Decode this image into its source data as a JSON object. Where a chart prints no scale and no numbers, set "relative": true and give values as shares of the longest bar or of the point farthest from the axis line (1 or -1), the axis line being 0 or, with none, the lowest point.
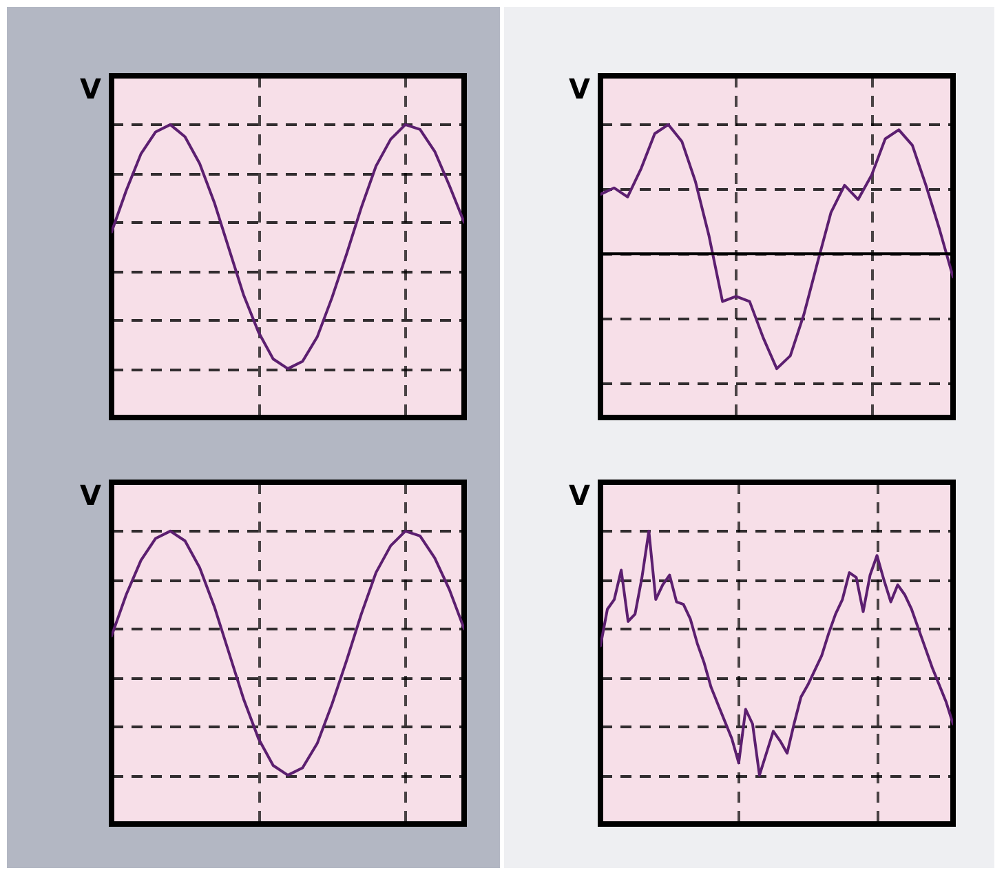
{
  "chart_data": [
    {
      "type": "line",
      "relative": true,
      "ylabel": "V",
      "grid": true,
      "categories": [
        null,
        null,
        null,
        null,
        null,
        null,
        null,
        null,
        null,
        null,
        null,
        null,
        null,
        null,
        null,
        null,
        null,
        null,
        null,
        null,
        null,
        null,
        null,
        null,
        null
      ],
      "series": [
        {
          "color": "#5c1f70",
          "values": [
            0.56,
            0.73,
            0.88,
            0.97,
            1,
            0.95,
            0.84,
            0.68,
            0.49,
            0.3,
            0.15,
            0.04,
            0,
            0.03,
            0.13,
            0.29,
            0.47,
            0.66,
            0.83,
            0.94,
            1,
            0.98,
            0.89,
            0.75,
            0.6
          ]
        }
      ]
    },
    {
      "type": "line",
      "relative": true,
      "ylabel": "V",
      "grid": true,
      "categories": [
        null,
        null,
        null,
        null,
        null,
        null,
        null,
        null,
        null,
        null,
        null,
        null,
        null,
        null,
        null,
        null,
        null,
        null,
        null,
        null,
        null,
        null,
        null,
        null,
        null,
        null,
        null
      ],
      "series": [
        {
          "color": "#5c1f70",
          "values": [
            0.46,
            0.51,
            0.44,
            0.66,
            0.93,
            1,
            0.87,
            0.56,
            0.14,
            -0.37,
            -0.33,
            -0.37,
            -0.65,
            -0.89,
            -0.79,
            -0.47,
            -0.07,
            0.32,
            0.53,
            0.42,
            0.61,
            0.89,
            0.96,
            0.84,
            0.53,
            0.19,
            -0.18
          ]
        }
      ]
    },
    {
      "type": "line",
      "relative": true,
      "ylabel": "V",
      "grid": true,
      "categories": [
        null,
        null,
        null,
        null,
        null,
        null,
        null,
        null,
        null,
        null,
        null,
        null,
        null,
        null,
        null,
        null,
        null,
        null,
        null,
        null,
        null,
        null,
        null,
        null,
        null
      ],
      "series": [
        {
          "color": "#5c1f70",
          "values": [
            0.57,
            0.74,
            0.88,
            0.97,
            1,
            0.96,
            0.85,
            0.69,
            0.5,
            0.31,
            0.15,
            0.04,
            0,
            0.03,
            0.13,
            0.29,
            0.47,
            0.66,
            0.83,
            0.94,
            1,
            0.98,
            0.89,
            0.76,
            0.6
          ]
        }
      ]
    },
    {
      "type": "line",
      "relative": true,
      "ylabel": "V",
      "grid": true,
      "categories": [
        null,
        null,
        null,
        null,
        null,
        null,
        null,
        null,
        null,
        null,
        null,
        null,
        null,
        null,
        null,
        null,
        null,
        null,
        null,
        null,
        null,
        null,
        null,
        null,
        null,
        null,
        null,
        null,
        null,
        null,
        null,
        null,
        null,
        null,
        null,
        null,
        null,
        null,
        null,
        null,
        null,
        null,
        null,
        null,
        null,
        null,
        null,
        null,
        null,
        null,
        null,
        null
      ],
      "series": [
        {
          "color": "#5c1f70",
          "values": [
            0.53,
            0.68,
            0.72,
            0.84,
            0.63,
            0.66,
            0.81,
            1,
            0.72,
            0.78,
            0.82,
            0.71,
            0.7,
            0.64,
            0.54,
            0.46,
            0.36,
            0.29,
            0.22,
            0.15,
            0.05,
            0.27,
            0.21,
            0,
            0.09,
            0.18,
            0.14,
            0.09,
            0.21,
            0.32,
            0.37,
            0.43,
            0.49,
            0.58,
            0.66,
            0.72,
            0.83,
            0.81,
            0.67,
            0.82,
            0.9,
            0.8,
            0.71,
            0.78,
            0.74,
            0.68,
            0.6,
            0.52,
            0.44,
            0.37,
            0.3,
            0.21
          ]
        }
      ]
    }
  ]
}
